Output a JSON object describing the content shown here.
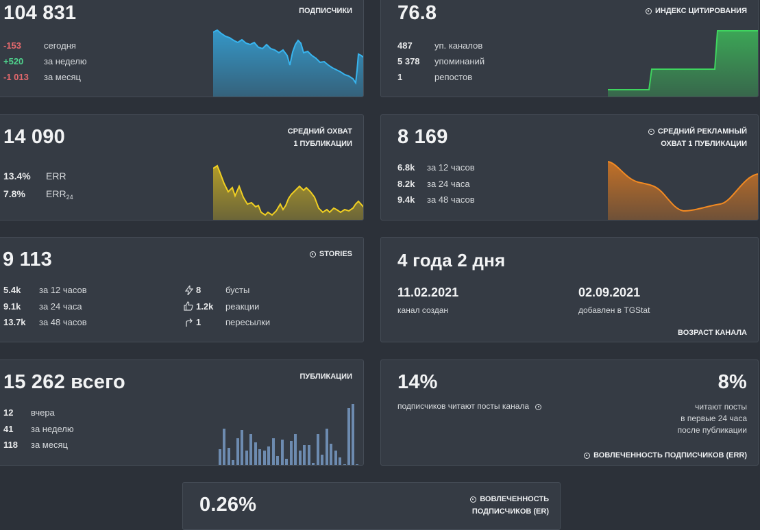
{
  "subscribers": {
    "value": "104 831",
    "title": "подписчики",
    "rows": [
      {
        "value": "-153",
        "label": "сегодня",
        "tone": "neg"
      },
      {
        "value": "+520",
        "label": "за неделю",
        "tone": "pos"
      },
      {
        "value": "-1 013",
        "label": "за месяц",
        "tone": "neg"
      }
    ]
  },
  "citation": {
    "value": "76.8",
    "title": "индекс цитирования",
    "rows": [
      {
        "value": "487",
        "label": "уп. каналов"
      },
      {
        "value": "5 378",
        "label": "упоминаний"
      },
      {
        "value": "1",
        "label": "репостов"
      }
    ]
  },
  "avg_reach": {
    "value": "14 090",
    "title_line1": "средний охват",
    "title_line2": "1 публикации",
    "rows": [
      {
        "value": "13.4%",
        "label": "ERR"
      },
      {
        "value": "7.8%",
        "label": "ERR",
        "sub": "24"
      }
    ]
  },
  "ad_reach": {
    "value": "8 169",
    "title_line1": "средний рекламный",
    "title_line2": "охват 1 публикации",
    "rows": [
      {
        "value": "6.8k",
        "label": "за 12 часов"
      },
      {
        "value": "8.2k",
        "label": "за 24 часа"
      },
      {
        "value": "9.4k",
        "label": "за 48 часов"
      }
    ]
  },
  "stories": {
    "value": "9 113",
    "title": "stories",
    "rows": [
      {
        "value": "5.4k",
        "label": "за 12 часов"
      },
      {
        "value": "9.1k",
        "label": "за 24 часа"
      },
      {
        "value": "13.7k",
        "label": "за 48 часов"
      }
    ],
    "stats": [
      {
        "icon": "lightning-icon",
        "value": "8",
        "label": "бусты"
      },
      {
        "icon": "thumbs-up-icon",
        "value": "1.2k",
        "label": "реакции"
      },
      {
        "icon": "forward-arrow-icon",
        "value": "1",
        "label": "пересылки"
      }
    ]
  },
  "age": {
    "value": "4 года 2 дня",
    "created_date": "11.02.2021",
    "created_label": "канал создан",
    "added_date": "02.09.2021",
    "added_label": "добавлен в TGStat",
    "title": "возраст канала"
  },
  "publications": {
    "value": "15 262 всего",
    "title": "публикации",
    "rows": [
      {
        "value": "12",
        "label": "вчера"
      },
      {
        "value": "41",
        "label": "за неделю"
      },
      {
        "value": "118",
        "label": "за месяц"
      }
    ]
  },
  "engagement_err": {
    "left_value": "14%",
    "left_label": "подписчиков читают посты канала",
    "right_value": "8%",
    "right_line1": "читают посты",
    "right_line2": "в первые 24 часа",
    "right_line3": "после публикации",
    "title": "вовлеченность подписчиков (ERR)"
  },
  "engagement_er": {
    "value": "0.26%",
    "title_line1": "вовлеченность",
    "title_line2": "подписчиков (ER)"
  },
  "colors": {
    "bg": "#2c3139",
    "card": "#353b44",
    "subscribers": "#35a7de",
    "citation": "#3ec95c",
    "reach": "#e7c51e",
    "ad_reach": "#f0821e",
    "bars": "#6d8bb0"
  }
}
